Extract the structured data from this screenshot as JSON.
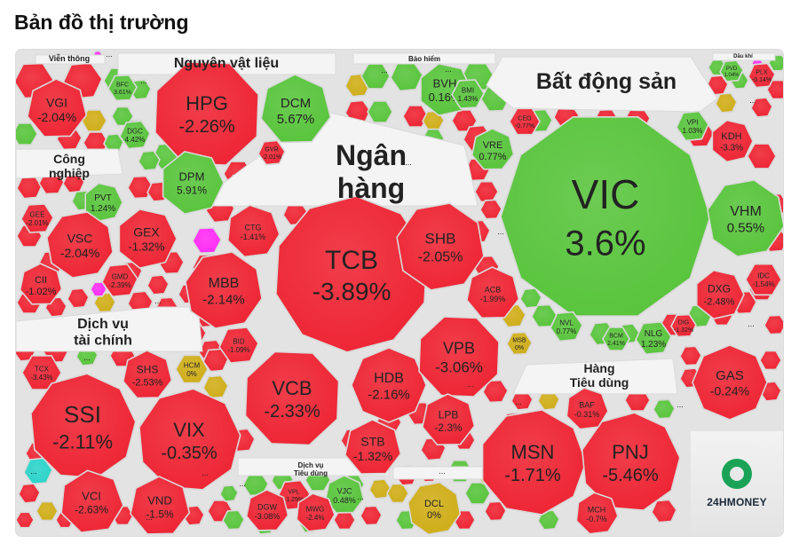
{
  "page": {
    "title": "Bản đồ thị trường"
  },
  "brand": {
    "logo_text": "24HMONEY"
  },
  "colors": {
    "down": "#ee2433",
    "up": "#58c43b",
    "ref": "#cfad17",
    "ceiling": "#ff2cf5",
    "floor": "#29d3c9"
  },
  "chart_data": {
    "type": "treemap",
    "title": "Bản đồ thị trường",
    "sectors": [
      {
        "name": "Viễn thông"
      },
      {
        "name": "Nguyên vật liệu"
      },
      {
        "name": "Bảo hiểm"
      },
      {
        "name": "Bất động sản"
      },
      {
        "name": "Dầu khí"
      },
      {
        "name": "Công nghiệp"
      },
      {
        "name": "Ngân hàng"
      },
      {
        "name": "Dịch vụ tài chính"
      },
      {
        "name": "Hàng Tiêu dùng"
      },
      {
        "name": "Dịch vụ Tiêu dùng"
      }
    ],
    "stocks": [
      {
        "ticker": "VGI",
        "change": "-2.04%"
      },
      {
        "ticker": "HPG",
        "change": "-2.26%"
      },
      {
        "ticker": "DCM",
        "change": "5.67%"
      },
      {
        "ticker": "DPM",
        "change": "5.91%"
      },
      {
        "ticker": "BFC",
        "change": "3.61%"
      },
      {
        "ticker": "DGC",
        "change": "4.42%"
      },
      {
        "ticker": "GVR",
        "change": "-2.01%"
      },
      {
        "ticker": "BVH",
        "change": "0.16%"
      },
      {
        "ticker": "BMI",
        "change": "1.43%"
      },
      {
        "ticker": "VIC",
        "change": "3.6%"
      },
      {
        "ticker": "VHM",
        "change": "0.55%"
      },
      {
        "ticker": "VRE",
        "change": "0.77%"
      },
      {
        "ticker": "KDH",
        "change": "-3.3%"
      },
      {
        "ticker": "VPI",
        "change": "1.03%"
      },
      {
        "ticker": "CEO",
        "change": "-0.77%"
      },
      {
        "ticker": "DXG",
        "change": "-2.48%"
      },
      {
        "ticker": "IDC",
        "change": "-1.54%"
      },
      {
        "ticker": "NVL",
        "change": "0.77%"
      },
      {
        "ticker": "BCM",
        "change": "2.41%"
      },
      {
        "ticker": "NLG",
        "change": "1.23%"
      },
      {
        "ticker": "DIG",
        "change": "-1.32%"
      },
      {
        "ticker": "PVD",
        "change": "1.04%"
      },
      {
        "ticker": "PLX",
        "change": "-0.14%"
      },
      {
        "ticker": "GAS",
        "change": "-0.24%"
      },
      {
        "ticker": "PVT",
        "change": "1.24%"
      },
      {
        "ticker": "GEE",
        "change": "-2.01%"
      },
      {
        "ticker": "VSC",
        "change": "-2.04%"
      },
      {
        "ticker": "GEX",
        "change": "-1.32%"
      },
      {
        "ticker": "CII",
        "change": "-1.02%"
      },
      {
        "ticker": "GMD",
        "change": "-2.39%"
      },
      {
        "ticker": "TCB",
        "change": "-3.89%"
      },
      {
        "ticker": "SHB",
        "change": "-2.05%"
      },
      {
        "ticker": "CTG",
        "change": "-1.41%"
      },
      {
        "ticker": "MBB",
        "change": "-2.14%"
      },
      {
        "ticker": "ACB",
        "change": "-1.99%"
      },
      {
        "ticker": "BID",
        "change": "-1.09%"
      },
      {
        "ticker": "VCB",
        "change": "-2.33%"
      },
      {
        "ticker": "HDB",
        "change": "-2.16%"
      },
      {
        "ticker": "VPB",
        "change": "-3.06%"
      },
      {
        "ticker": "MSB",
        "change": "0%"
      },
      {
        "ticker": "LPB",
        "change": "-2.3%"
      },
      {
        "ticker": "STB",
        "change": "-1.32%"
      },
      {
        "ticker": "TCX",
        "change": "-3.43%"
      },
      {
        "ticker": "SHS",
        "change": "-2.53%"
      },
      {
        "ticker": "HCM",
        "change": "0%"
      },
      {
        "ticker": "SSI",
        "change": "-2.11%"
      },
      {
        "ticker": "VIX",
        "change": "-0.35%"
      },
      {
        "ticker": "VCI",
        "change": "-2.63%"
      },
      {
        "ticker": "VND",
        "change": "-1.5%"
      },
      {
        "ticker": "MSN",
        "change": "-1.71%"
      },
      {
        "ticker": "PNJ",
        "change": "-5.46%"
      },
      {
        "ticker": "BAF",
        "change": "-0.31%"
      },
      {
        "ticker": "MCH",
        "change": "-0.7%"
      },
      {
        "ticker": "VPL",
        "change": "-1.29%"
      },
      {
        "ticker": "VJC",
        "change": "0.48%"
      },
      {
        "ticker": "DGW",
        "change": "-3.08%"
      },
      {
        "ticker": "MWG",
        "change": "-2.4%"
      },
      {
        "ticker": "DCL",
        "change": "0%"
      }
    ],
    "more_marker": "..."
  }
}
